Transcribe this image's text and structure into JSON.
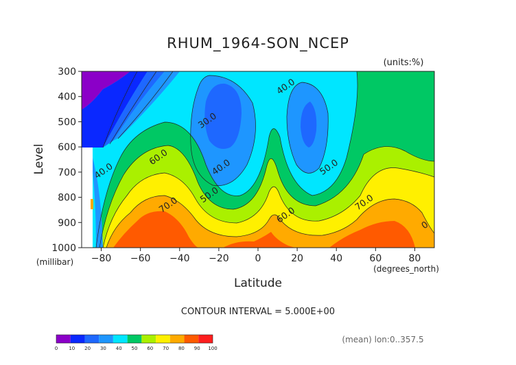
{
  "chart_data": {
    "type": "contour",
    "title": "RHUM_1964-SON_NCEP",
    "units": "(units:%)",
    "xlabel": "Latitude",
    "ylabel": "Level",
    "x_unit_label": "(degrees_north)",
    "y_unit_label": "(millibar)",
    "x_range": [
      -90,
      90
    ],
    "y_range": [
      1000,
      300
    ],
    "x_ticks": [
      -80,
      -60,
      -40,
      -20,
      0,
      20,
      40,
      60,
      80
    ],
    "y_ticks": [
      300,
      400,
      500,
      600,
      700,
      800,
      900,
      1000
    ],
    "contour_interval_text": "CONTOUR INTERVAL = 5.000E+00",
    "footnote": "(mean) lon:0..357.5",
    "contour_labels": [
      {
        "text": "30.0",
        "lat": -25,
        "lev": 505
      },
      {
        "text": "40.0",
        "lat": 15,
        "lev": 370
      },
      {
        "text": "40.0",
        "lat": -78,
        "lev": 705
      },
      {
        "text": "40.0",
        "lat": -18,
        "lev": 690
      },
      {
        "text": "50.0",
        "lat": 37,
        "lev": 690
      },
      {
        "text": "50.0",
        "lat": -24,
        "lev": 800
      },
      {
        "text": "60.0",
        "lat": -50,
        "lev": 650
      },
      {
        "text": "60.0",
        "lat": 15,
        "lev": 880
      },
      {
        "text": "70.0",
        "lat": -45,
        "lev": 840
      },
      {
        "text": "70.0",
        "lat": 55,
        "lev": 830
      },
      {
        "text": "0",
        "lat": 86,
        "lev": 920
      }
    ],
    "colorbar": {
      "ticks": [
        "0",
        "10",
        "20",
        "30",
        "40",
        "50",
        "60",
        "70",
        "80",
        "90",
        "100"
      ],
      "colors": [
        "#8b00c8",
        "#0a28ff",
        "#1e68ff",
        "#1e96ff",
        "#00e6ff",
        "#00c864",
        "#aaf000",
        "#fff000",
        "#ffaa00",
        "#ff5a00",
        "#ff1e1e"
      ]
    }
  }
}
